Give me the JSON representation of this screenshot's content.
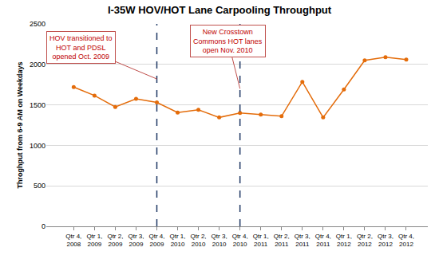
{
  "chart_data": {
    "type": "line",
    "title": "I-35W HOV/HOT Lane Carpooling Throughput",
    "y_label": "Throghput from 6-9 AM on Weekdays",
    "categories": [
      "Qtr 4, 2008",
      "Qtr 1, 2009",
      "Qtr 2, 2009",
      "Qtr 3, 2009",
      "Qtr 4, 2009",
      "Qtr 1, 2010",
      "Qtr 2, 2010",
      "Qtr 3, 2010",
      "Qtr 4, 2010",
      "Qtr 1, 2011",
      "Qtr 2, 2011",
      "Qtr 3, 2011",
      "Qtr 4, 2011",
      "Qtr 1, 2012",
      "Qtr 2, 2012",
      "Qtr 3, 2012",
      "Qtr 4, 2012"
    ],
    "values": [
      1720,
      1615,
      1475,
      1575,
      1530,
      1405,
      1440,
      1345,
      1400,
      1380,
      1360,
      1785,
      1345,
      1690,
      2050,
      2090,
      2060
    ],
    "color": "#e46c0a",
    "marker": "circle",
    "line_style": "solid",
    "ylim": [
      0,
      2500
    ],
    "yticks": [
      0,
      500,
      1000,
      1500,
      2000,
      2500
    ],
    "grid": true,
    "annotations": [
      {
        "lines": [
          "HOV transitioned to",
          "HOT and PDSL",
          "opened Oct. 2009"
        ],
        "category": "Qtr 4, 2009"
      },
      {
        "lines": [
          "New Crosstown",
          "Commons HOT lanes",
          "open Nov. 2010"
        ],
        "category": "Qtr 4, 2010"
      }
    ]
  }
}
